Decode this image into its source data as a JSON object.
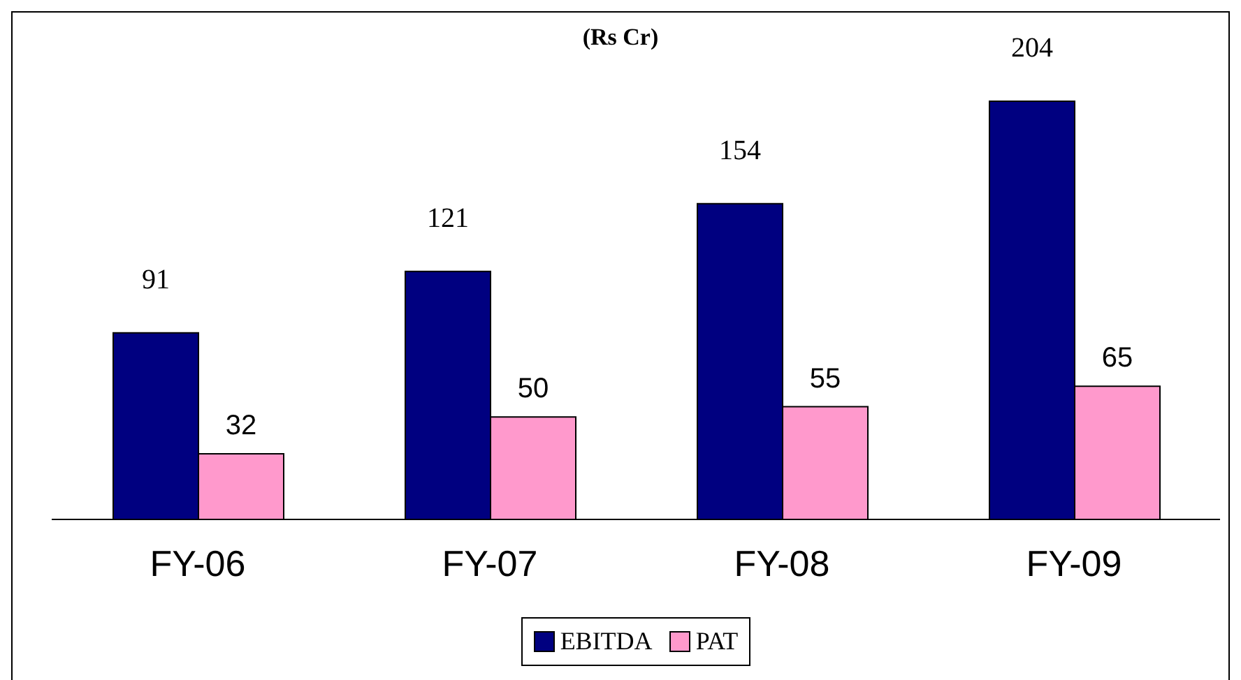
{
  "chart_data": {
    "type": "bar",
    "title": "(Rs Cr)",
    "categories": [
      "FY-06",
      "FY-07",
      "FY-08",
      "FY-09"
    ],
    "series": [
      {
        "name": "EBITDA",
        "color": "#000080",
        "values": [
          91,
          121,
          154,
          204
        ]
      },
      {
        "name": "PAT",
        "color": "#ff99cc",
        "values": [
          32,
          50,
          55,
          65
        ]
      }
    ],
    "data_labels": true,
    "legend": "bottom",
    "grid": false
  }
}
